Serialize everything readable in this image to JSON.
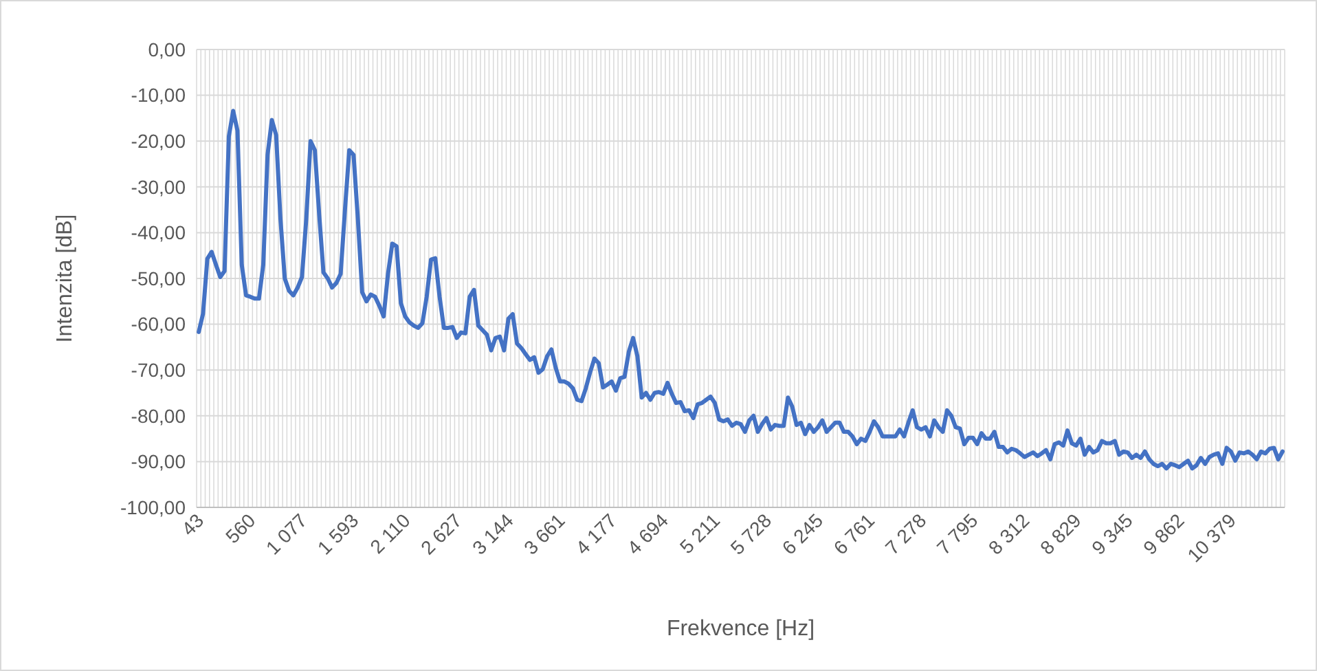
{
  "chart_data": {
    "type": "line",
    "xlabel": "Frekvence [Hz]",
    "ylabel": "Intenzita [dB]",
    "grid": true,
    "marker": "none",
    "line_style": "solid",
    "ylim": [
      -100,
      0
    ],
    "yticks": [
      {
        "value": 0,
        "label": "0,00"
      },
      {
        "value": -10,
        "label": "-10,00"
      },
      {
        "value": -20,
        "label": "-20,00"
      },
      {
        "value": -30,
        "label": "-30,00"
      },
      {
        "value": -40,
        "label": "-40,00"
      },
      {
        "value": -50,
        "label": "-50,00"
      },
      {
        "value": -60,
        "label": "-60,00"
      },
      {
        "value": -70,
        "label": "-70,00"
      },
      {
        "value": -80,
        "label": "-80,00"
      },
      {
        "value": -90,
        "label": "-90,00"
      },
      {
        "value": -100,
        "label": "-100,00"
      }
    ],
    "categories": [
      "43",
      null,
      null,
      null,
      null,
      null,
      null,
      null,
      null,
      null,
      null,
      null,
      "560",
      null,
      null,
      null,
      null,
      null,
      null,
      null,
      null,
      null,
      null,
      null,
      "1 077",
      null,
      null,
      null,
      null,
      null,
      null,
      null,
      null,
      null,
      null,
      null,
      "1 593",
      null,
      null,
      null,
      null,
      null,
      null,
      null,
      null,
      null,
      null,
      null,
      "2 110",
      null,
      null,
      null,
      null,
      null,
      null,
      null,
      null,
      null,
      null,
      null,
      "2 627",
      null,
      null,
      null,
      null,
      null,
      null,
      null,
      null,
      null,
      null,
      null,
      "3 144",
      null,
      null,
      null,
      null,
      null,
      null,
      null,
      null,
      null,
      null,
      null,
      "3 661",
      null,
      null,
      null,
      null,
      null,
      null,
      null,
      null,
      null,
      null,
      null,
      "4 177",
      null,
      null,
      null,
      null,
      null,
      null,
      null,
      null,
      null,
      null,
      null,
      "4 694",
      null,
      null,
      null,
      null,
      null,
      null,
      null,
      null,
      null,
      null,
      null,
      "5 211",
      null,
      null,
      null,
      null,
      null,
      null,
      null,
      null,
      null,
      null,
      null,
      "5 728",
      null,
      null,
      null,
      null,
      null,
      null,
      null,
      null,
      null,
      null,
      null,
      "6 245",
      null,
      null,
      null,
      null,
      null,
      null,
      null,
      null,
      null,
      null,
      null,
      "6 761",
      null,
      null,
      null,
      null,
      null,
      null,
      null,
      null,
      null,
      null,
      null,
      "7 278",
      null,
      null,
      null,
      null,
      null,
      null,
      null,
      null,
      null,
      null,
      null,
      "7 795",
      null,
      null,
      null,
      null,
      null,
      null,
      null,
      null,
      null,
      null,
      null,
      "8 312",
      null,
      null,
      null,
      null,
      null,
      null,
      null,
      null,
      null,
      null,
      null,
      "8 829",
      null,
      null,
      null,
      null,
      null,
      null,
      null,
      null,
      null,
      null,
      null,
      "9 345",
      null,
      null,
      null,
      null,
      null,
      null,
      null,
      null,
      null,
      null,
      null,
      "9 862",
      null,
      null,
      null,
      null,
      null,
      null,
      null,
      null,
      null,
      null,
      null,
      "10 379",
      null,
      null,
      null,
      null,
      null,
      null,
      null,
      null,
      null,
      null,
      null,
      null
    ],
    "series": [
      {
        "color": "#4472c4",
        "values": [
          -61.7,
          -57.7,
          -45.7,
          -44.2,
          -47,
          -49.7,
          -48.4,
          -19,
          -13.4,
          -17.7,
          -47,
          -53.7,
          -54,
          -54.4,
          -54.4,
          -47,
          -23,
          -15.4,
          -18.7,
          -37,
          -50,
          -52.7,
          -53.7,
          -52,
          -49.7,
          -37,
          -20,
          -22,
          -36,
          -48.7,
          -50,
          -52,
          -51,
          -49,
          -35,
          -22,
          -23,
          -37,
          -53,
          -55,
          -53.5,
          -54,
          -56,
          -58.3,
          -49,
          -42.4,
          -43,
          -55.4,
          -58.3,
          -59.6,
          -60.3,
          -60.8,
          -59.8,
          -54,
          -45.9,
          -45.6,
          -54,
          -60.8,
          -60.8,
          -60.6,
          -63,
          -61.8,
          -62,
          -54,
          -52.5,
          -60.3,
          -61.3,
          -62.3,
          -65.7,
          -63,
          -62.7,
          -65.7,
          -58.8,
          -57.8,
          -64.2,
          -65.2,
          -66.5,
          -67.8,
          -67.2,
          -70.6,
          -69.8,
          -67,
          -65.5,
          -69.5,
          -72.5,
          -72.5,
          -73,
          -74,
          -76.5,
          -76.8,
          -74,
          -70.5,
          -67.5,
          -68.5,
          -73.8,
          -73.2,
          -72.5,
          -74.5,
          -71.8,
          -71.5,
          -66,
          -63,
          -67,
          -76,
          -75,
          -76.5,
          -75,
          -74.8,
          -75.2,
          -72.8,
          -75.2,
          -77.2,
          -77,
          -79,
          -78.8,
          -80.5,
          -77.5,
          -77.2,
          -76.5,
          -75.8,
          -77.2,
          -80.8,
          -81.2,
          -80.8,
          -82.2,
          -81.5,
          -81.8,
          -83.5,
          -81,
          -80,
          -83.5,
          -81.8,
          -80.5,
          -83,
          -82,
          -82.2,
          -82.2,
          -76,
          -78,
          -82,
          -81.5,
          -84,
          -82,
          -83.5,
          -82.5,
          -81,
          -83.5,
          -82.5,
          -81.5,
          -81.5,
          -83.5,
          -83.5,
          -84.5,
          -86.2,
          -85,
          -85.5,
          -83.5,
          -81.2,
          -82.5,
          -84.5,
          -84.5,
          -84.5,
          -84.5,
          -83,
          -84.5,
          -81.5,
          -78.8,
          -82.5,
          -83,
          -82.5,
          -84.5,
          -81,
          -82.5,
          -83.5,
          -78.8,
          -80,
          -82.5,
          -82.8,
          -86.2,
          -84.8,
          -84.8,
          -86.2,
          -83.8,
          -85,
          -85,
          -83.5,
          -86.8,
          -86.8,
          -88,
          -87.2,
          -87.5,
          -88.2,
          -89,
          -88.5,
          -88,
          -88.8,
          -88.2,
          -87.5,
          -89.5,
          -86.2,
          -85.8,
          -86.5,
          -83.2,
          -86,
          -86.5,
          -85,
          -88.5,
          -86.8,
          -88,
          -87.5,
          -85.5,
          -86,
          -86,
          -85.5,
          -88.5,
          -87.8,
          -88,
          -89.2,
          -88.5,
          -89.2,
          -87.8,
          -89.5,
          -90.5,
          -91,
          -90.5,
          -91.5,
          -90.5,
          -90.8,
          -91.2,
          -90.5,
          -89.8,
          -91.5,
          -90.8,
          -89.2,
          -90.5,
          -89,
          -88.5,
          -88.2,
          -90.5,
          -87,
          -87.8,
          -89.8,
          -88,
          -88.2,
          -87.8,
          -88.5,
          -89.5,
          -87.8,
          -88.2,
          -87.2,
          -87,
          -89.5,
          -87.8
        ]
      }
    ]
  }
}
